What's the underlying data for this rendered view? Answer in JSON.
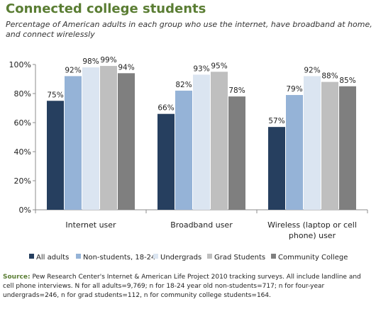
{
  "title": "Connected college students",
  "subtitle": "Percentage of American adults in each group who use the internet, have broadband at home, and connect wirelessly",
  "source": {
    "label": "Source:",
    "text": "Pew Research Center's Internet & American Life Project 2010 tracking surveys. All include landline and cell phone interviews. N for all adults=9,769; n for 18-24 year old non-students=717; n for four-year undergrads=246, n for grad students=112, n for community college students=164."
  },
  "chart_data": {
    "type": "bar",
    "title": "Connected college students",
    "ylim": [
      0,
      100
    ],
    "y_ticks": [
      "0%",
      "20%",
      "40%",
      "60%",
      "80%",
      "100%"
    ],
    "grid": false,
    "legend_position": "bottom",
    "categories": [
      [
        "Internet user"
      ],
      [
        "Broadband user"
      ],
      [
        "Wireless (laptop or cell",
        "phone) user"
      ]
    ],
    "series": [
      {
        "name": "All adults",
        "color": "#263f5f",
        "values": [
          75,
          66,
          57
        ],
        "labels": [
          "75%",
          "66%",
          "57%"
        ]
      },
      {
        "name": "Non-students, 18-24",
        "color": "#95b3d7",
        "values": [
          92,
          82,
          79
        ],
        "labels": [
          "92%",
          "82%",
          "79%"
        ]
      },
      {
        "name": "Undergrads",
        "color": "#dbe5f1",
        "values": [
          98,
          93,
          92
        ],
        "labels": [
          "98%",
          "93%",
          "92%"
        ]
      },
      {
        "name": "Grad Students",
        "color": "#bfbfbf",
        "values": [
          99,
          95,
          88
        ],
        "labels": [
          "99%",
          "95%",
          "88%"
        ]
      },
      {
        "name": "Community College",
        "color": "#7f7f7f",
        "values": [
          94,
          78,
          85
        ],
        "labels": [
          "94%",
          "78%",
          "85%"
        ]
      }
    ]
  }
}
